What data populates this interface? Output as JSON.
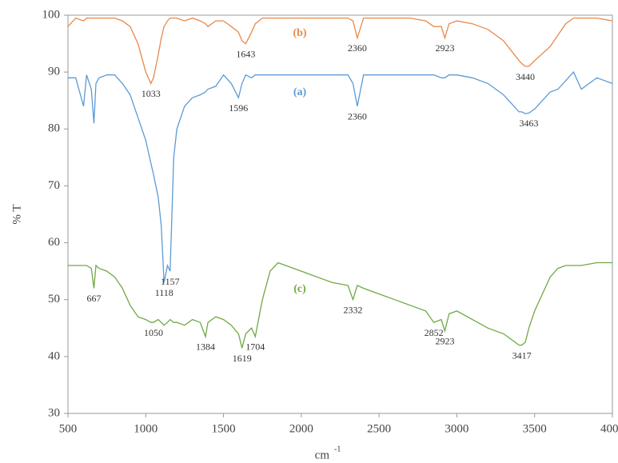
{
  "chart_data": {
    "type": "line",
    "y_label": "% T",
    "x_label": "cm",
    "x_label_sup": "-1",
    "x": [
      500,
      550,
      600,
      620,
      650,
      667,
      680,
      700,
      750,
      800,
      850,
      900,
      950,
      1000,
      1033,
      1050,
      1080,
      1100,
      1118,
      1140,
      1157,
      1180,
      1200,
      1250,
      1300,
      1350,
      1384,
      1400,
      1450,
      1500,
      1550,
      1596,
      1619,
      1643,
      1680,
      1704,
      1750,
      1800,
      1850,
      1900,
      2000,
      2100,
      2200,
      2300,
      2332,
      2360,
      2400,
      2500,
      2600,
      2700,
      2800,
      2852,
      2900,
      2923,
      2950,
      3000,
      3100,
      3200,
      3300,
      3400,
      3417,
      3440,
      3463,
      3500,
      3600,
      3650,
      3700,
      3750,
      3800,
      3900,
      4000
    ],
    "series": [
      {
        "name": "(b)",
        "color": "#e8894a",
        "values": [
          98,
          99.5,
          99,
          99.5,
          99.5,
          99.5,
          99.5,
          99.5,
          99.5,
          99.5,
          99,
          98,
          95,
          90,
          88,
          89,
          93,
          96,
          98,
          99,
          99.5,
          99.5,
          99.5,
          99,
          99.5,
          99,
          98.5,
          98,
          99,
          99,
          98,
          97,
          95.5,
          95,
          97,
          98.5,
          99.5,
          99.5,
          99.5,
          99.5,
          99.5,
          99.5,
          99.5,
          99.5,
          99,
          96,
          99.5,
          99.5,
          99.5,
          99.5,
          99,
          98,
          98,
          96,
          98.5,
          99,
          98.5,
          97.5,
          95.5,
          92,
          91.5,
          91,
          91,
          92,
          94.5,
          96.5,
          98.5,
          99.5,
          99.5,
          99.5,
          99
        ],
        "peaks": [
          1033,
          1643,
          2360,
          2923,
          3440
        ]
      },
      {
        "name": "(a)",
        "color": "#5b9bd5",
        "values": [
          89,
          89,
          84,
          89.5,
          87,
          81,
          88,
          89,
          89.5,
          89.5,
          88,
          86,
          82,
          78,
          74,
          72,
          68,
          63,
          53,
          56,
          55,
          75,
          80,
          84,
          85.5,
          86,
          86.5,
          87,
          87.5,
          89.5,
          88,
          85.5,
          88,
          89.5,
          89,
          89.5,
          89.5,
          89.5,
          89.5,
          89.5,
          89.5,
          89.5,
          89.5,
          89.5,
          88,
          84,
          89.5,
          89.5,
          89.5,
          89.5,
          89.5,
          89.5,
          89,
          89,
          89.5,
          89.5,
          89,
          88,
          86,
          83,
          83,
          82.7,
          82.8,
          83.5,
          86.5,
          87,
          88.5,
          90,
          87,
          89,
          88
        ],
        "peaks": [
          1118,
          1157,
          1596,
          2360,
          3463
        ]
      },
      {
        "name": "(c)",
        "color": "#70a845",
        "values": [
          56,
          56,
          56,
          56,
          55.5,
          52,
          56,
          55.5,
          55,
          54,
          52,
          49,
          47,
          46.5,
          46,
          46,
          46.5,
          46,
          45.5,
          46,
          46.5,
          46,
          46,
          45.5,
          46.5,
          46,
          43.5,
          46,
          47,
          46.5,
          45.5,
          44,
          41.5,
          44,
          45,
          43.5,
          50,
          55,
          56.5,
          56,
          55,
          54,
          53,
          52.5,
          50,
          52.5,
          52,
          51,
          50,
          49,
          48,
          46,
          46.5,
          44.5,
          47.5,
          48,
          46.5,
          45,
          44,
          42,
          42,
          42.5,
          45,
          48,
          54,
          55.5,
          56,
          56,
          56,
          56.5,
          56.5
        ],
        "peaks": [
          667,
          1050,
          1384,
          1619,
          1704,
          2332,
          2852,
          2923,
          3417
        ]
      }
    ],
    "xlim": [
      500,
      4000
    ],
    "ylim": [
      30,
      100
    ],
    "xticks": [
      500,
      1000,
      1500,
      2000,
      2500,
      3000,
      3500,
      4000
    ],
    "yticks": [
      30,
      40,
      50,
      60,
      70,
      80,
      90,
      100
    ]
  }
}
